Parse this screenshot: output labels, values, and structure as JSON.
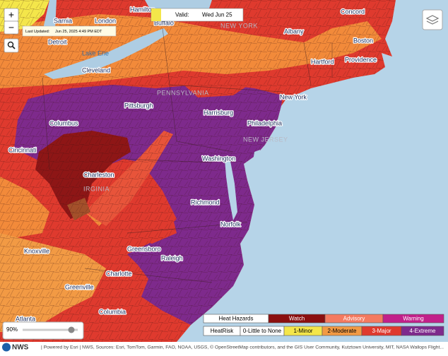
{
  "controls": {
    "zoom_in": "+",
    "zoom_out": "−"
  },
  "last_updated": {
    "label": "Last Updated:",
    "value": "Jun 25, 2025 4:49 PM EDT"
  },
  "valid": {
    "label": "Valid:",
    "value": "Wed Jun 25"
  },
  "labels": [
    "Sarnia",
    "London",
    "Hamilton",
    "Buffalo",
    "Detroit",
    "Lake Erie",
    "Cleveland",
    "NEW YORK",
    "Albany",
    "Concord",
    "Boston",
    "Hartford",
    "Providence",
    "PENNSYLVANIA",
    "Pittsburgh",
    "Harrisburg",
    "New York",
    "Columbus",
    "Philadelphia",
    "Cincinnati",
    "NEW JERSEY",
    "Washington",
    "Charleston",
    "IRGINIA",
    "Richmond",
    "Norfolk",
    "Knoxville",
    "Greensboro",
    "Raleigh",
    "Charlotte",
    "Greenville",
    "Columbia",
    "Atlanta"
  ],
  "legend": {
    "hazards": {
      "title": "Heat Hazards",
      "items": [
        "Watch",
        "Advisory",
        "Warning"
      ]
    },
    "heatrisk": {
      "title": "HeatRisk",
      "items": [
        "0-Little to None",
        "1-Minor",
        "2-Moderate",
        "3-Major",
        "4-Extreme"
      ]
    }
  },
  "opacity": "90%",
  "logo": "NWS",
  "attribution": "| Powered by Esri | NWS, Sources: Esri, TomTom, Garmin, FAO, NOAA, USGS, © OpenStreetMap contributors, and the GIS User Community, Kutztown University, MIT, NASA Wallops Flight..."
}
